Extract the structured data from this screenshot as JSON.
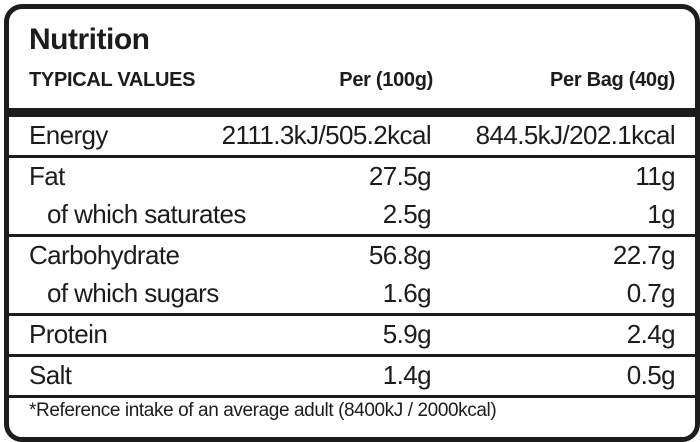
{
  "title": "Nutrition",
  "headers": {
    "label": "TYPICAL VALUES",
    "per100": "Per (100g)",
    "perBag": "Per Bag (40g)"
  },
  "rows": [
    {
      "label": "Energy",
      "per100": "2111.3kJ/505.2kcal",
      "perBag": "844.5kJ/202.1kcal"
    },
    {
      "label": "Fat",
      "per100": "27.5g",
      "perBag": "11g"
    },
    {
      "label": "of which saturates",
      "per100": "2.5g",
      "perBag": "1g"
    },
    {
      "label": "Carbohydrate",
      "per100": "56.8g",
      "perBag": "22.7g"
    },
    {
      "label": "of which sugars",
      "per100": "1.6g",
      "perBag": "0.7g"
    },
    {
      "label": "Protein",
      "per100": "5.9g",
      "perBag": "2.4g"
    },
    {
      "label": "Salt",
      "per100": "1.4g",
      "perBag": "0.5g"
    }
  ],
  "footnote": "*Reference intake of an average adult (8400kJ / 2000kcal)"
}
